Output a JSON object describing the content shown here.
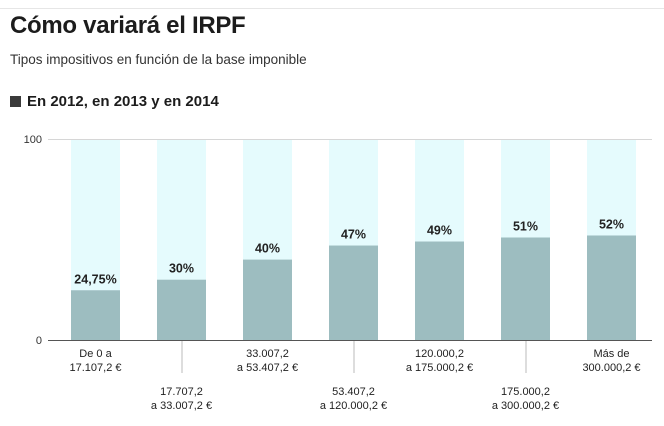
{
  "header": {
    "title": "Cómo variará el IRPF",
    "subtitle": "Tipos impositivos en función de la base imponible"
  },
  "legend": {
    "label": "En 2012, en 2013 y en 2014"
  },
  "colors": {
    "bar": "#9dbdc0",
    "bar_background": "#e5fbfd",
    "legend_swatch": "#3a3a3a"
  },
  "chart_data": {
    "type": "bar",
    "categories": [
      [
        "De 0 a",
        "17.107,2 €"
      ],
      [
        "17.707,2",
        "a 33.007,2 €"
      ],
      [
        "33.007,2",
        "a 53.407,2 €"
      ],
      [
        "53.407,2",
        "a 120.000,2 €"
      ],
      [
        "120.000,2",
        "a 175.000,2 €"
      ],
      [
        "175.000,2",
        "a 300.000,2 €"
      ],
      [
        "Más de",
        "300.000,2 €"
      ]
    ],
    "values": [
      24.75,
      30,
      40,
      47,
      49,
      51,
      52
    ],
    "value_labels": [
      "24,75%",
      "30%",
      "40%",
      "47%",
      "49%",
      "51%",
      "52%"
    ],
    "ylim": [
      0,
      100
    ],
    "yticks": [
      "0",
      "100"
    ],
    "title": "",
    "xlabel": "",
    "ylabel": ""
  }
}
